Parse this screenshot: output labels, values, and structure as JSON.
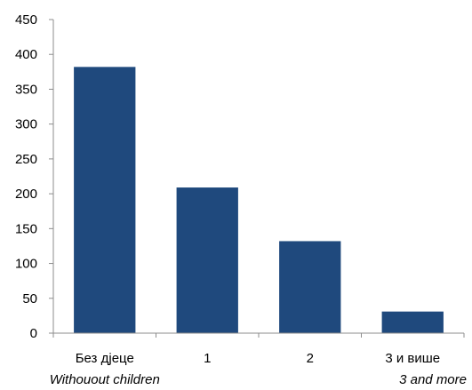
{
  "chart_data": {
    "type": "bar",
    "categories": [
      "Без дјеце",
      "1",
      "2",
      "3 и више"
    ],
    "categories_en": [
      "Withouout children",
      "",
      "",
      "3 and more"
    ],
    "values": [
      382,
      209,
      132,
      31
    ],
    "ylim": [
      0,
      450
    ],
    "yticks": [
      0,
      50,
      100,
      150,
      200,
      250,
      300,
      350,
      400,
      450
    ],
    "bar_color": "#1F497D",
    "grid": false,
    "legend": "none"
  }
}
